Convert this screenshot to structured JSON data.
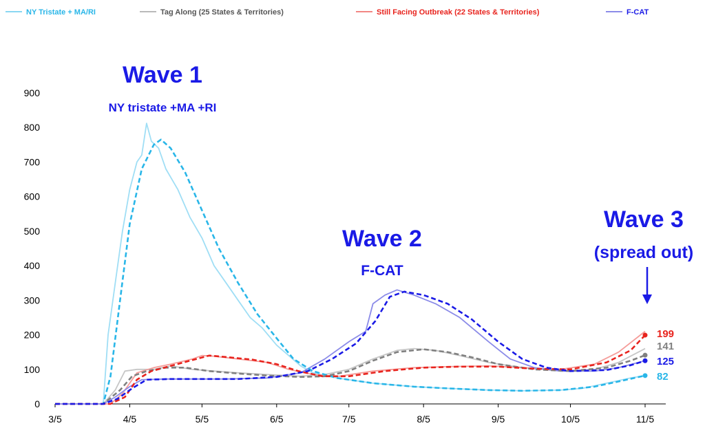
{
  "chart_data": {
    "type": "line",
    "xlim": [
      "2020-03-05",
      "2020-11-05"
    ],
    "ylim": [
      0,
      900
    ],
    "y_ticks": [
      0,
      100,
      200,
      300,
      400,
      500,
      600,
      700,
      800,
      900
    ],
    "x_ticks": [
      {
        "date": "2020-03-05",
        "label": "3/5"
      },
      {
        "date": "2020-04-05",
        "label": "4/5"
      },
      {
        "date": "2020-05-05",
        "label": "5/5"
      },
      {
        "date": "2020-06-05",
        "label": "6/5"
      },
      {
        "date": "2020-07-05",
        "label": "7/5"
      },
      {
        "date": "2020-08-05",
        "label": "8/5"
      },
      {
        "date": "2020-09-05",
        "label": "9/5"
      },
      {
        "date": "2020-10-05",
        "label": "10/5"
      },
      {
        "date": "2020-11-05",
        "label": "11/5"
      }
    ],
    "legend_position": "top",
    "grid": false,
    "series": [
      {
        "name": "NY Tristate + MA/RI",
        "color": "#29b6e8",
        "raw": [
          [
            "2020-03-05",
            0
          ],
          [
            "2020-03-25",
            0
          ],
          [
            "2020-03-27",
            200
          ],
          [
            "2020-03-30",
            350
          ],
          [
            "2020-04-02",
            500
          ],
          [
            "2020-04-05",
            620
          ],
          [
            "2020-04-08",
            700
          ],
          [
            "2020-04-10",
            720
          ],
          [
            "2020-04-12",
            812
          ],
          [
            "2020-04-14",
            760
          ],
          [
            "2020-04-17",
            740
          ],
          [
            "2020-04-20",
            680
          ],
          [
            "2020-04-25",
            620
          ],
          [
            "2020-04-30",
            540
          ],
          [
            "2020-05-05",
            480
          ],
          [
            "2020-05-10",
            400
          ],
          [
            "2020-05-15",
            350
          ],
          [
            "2020-05-20",
            300
          ],
          [
            "2020-05-25",
            250
          ],
          [
            "2020-05-30",
            220
          ],
          [
            "2020-06-05",
            170
          ],
          [
            "2020-06-10",
            140
          ],
          [
            "2020-06-15",
            110
          ],
          [
            "2020-06-20",
            90
          ],
          [
            "2020-06-30",
            75
          ],
          [
            "2020-07-15",
            60
          ],
          [
            "2020-08-01",
            50
          ],
          [
            "2020-08-15",
            45
          ],
          [
            "2020-09-01",
            40
          ],
          [
            "2020-09-15",
            38
          ],
          [
            "2020-10-01",
            40
          ],
          [
            "2020-10-10",
            45
          ],
          [
            "2020-10-20",
            60
          ],
          [
            "2020-10-30",
            75
          ],
          [
            "2020-11-05",
            82
          ]
        ],
        "avg": [
          [
            "2020-03-05",
            0
          ],
          [
            "2020-03-25",
            0
          ],
          [
            "2020-03-28",
            80
          ],
          [
            "2020-04-01",
            300
          ],
          [
            "2020-04-05",
            520
          ],
          [
            "2020-04-10",
            680
          ],
          [
            "2020-04-15",
            750
          ],
          [
            "2020-04-18",
            765
          ],
          [
            "2020-04-22",
            740
          ],
          [
            "2020-04-28",
            670
          ],
          [
            "2020-05-05",
            560
          ],
          [
            "2020-05-12",
            450
          ],
          [
            "2020-05-20",
            350
          ],
          [
            "2020-05-28",
            260
          ],
          [
            "2020-06-05",
            190
          ],
          [
            "2020-06-12",
            130
          ],
          [
            "2020-06-20",
            95
          ],
          [
            "2020-06-30",
            75
          ],
          [
            "2020-07-15",
            60
          ],
          [
            "2020-08-01",
            50
          ],
          [
            "2020-08-15",
            45
          ],
          [
            "2020-09-01",
            40
          ],
          [
            "2020-09-15",
            38
          ],
          [
            "2020-10-01",
            40
          ],
          [
            "2020-10-15",
            50
          ],
          [
            "2020-10-25",
            65
          ],
          [
            "2020-11-05",
            82
          ]
        ],
        "end_value": 82,
        "end_label": "82"
      },
      {
        "name": "Tag Along (25 States & Territories)",
        "color": "#808080",
        "raw": [
          [
            "2020-03-05",
            0
          ],
          [
            "2020-03-25",
            0
          ],
          [
            "2020-03-30",
            40
          ],
          [
            "2020-04-03",
            95
          ],
          [
            "2020-04-08",
            100
          ],
          [
            "2020-04-15",
            100
          ],
          [
            "2020-04-22",
            110
          ],
          [
            "2020-05-01",
            100
          ],
          [
            "2020-05-10",
            95
          ],
          [
            "2020-05-20",
            90
          ],
          [
            "2020-06-01",
            85
          ],
          [
            "2020-06-15",
            80
          ],
          [
            "2020-06-25",
            85
          ],
          [
            "2020-07-05",
            100
          ],
          [
            "2020-07-15",
            130
          ],
          [
            "2020-07-25",
            155
          ],
          [
            "2020-08-01",
            160
          ],
          [
            "2020-08-10",
            155
          ],
          [
            "2020-08-20",
            140
          ],
          [
            "2020-09-01",
            120
          ],
          [
            "2020-09-15",
            105
          ],
          [
            "2020-10-01",
            95
          ],
          [
            "2020-10-15",
            100
          ],
          [
            "2020-10-25",
            120
          ],
          [
            "2020-11-05",
            160
          ]
        ],
        "avg": [
          [
            "2020-03-05",
            0
          ],
          [
            "2020-03-25",
            0
          ],
          [
            "2020-04-01",
            40
          ],
          [
            "2020-04-06",
            80
          ],
          [
            "2020-04-12",
            95
          ],
          [
            "2020-04-20",
            105
          ],
          [
            "2020-04-28",
            105
          ],
          [
            "2020-05-08",
            95
          ],
          [
            "2020-05-20",
            88
          ],
          [
            "2020-06-01",
            82
          ],
          [
            "2020-06-15",
            78
          ],
          [
            "2020-06-25",
            80
          ],
          [
            "2020-07-05",
            95
          ],
          [
            "2020-07-15",
            125
          ],
          [
            "2020-07-25",
            150
          ],
          [
            "2020-08-05",
            158
          ],
          [
            "2020-08-15",
            150
          ],
          [
            "2020-08-25",
            135
          ],
          [
            "2020-09-05",
            115
          ],
          [
            "2020-09-20",
            100
          ],
          [
            "2020-10-05",
            95
          ],
          [
            "2020-10-20",
            105
          ],
          [
            "2020-10-30",
            125
          ],
          [
            "2020-11-05",
            141
          ]
        ],
        "end_value": 141,
        "end_label": "141"
      },
      {
        "name": "Still Facing Outbreak (22 States & Territories)",
        "color": "#e8231d",
        "raw": [
          [
            "2020-03-05",
            0
          ],
          [
            "2020-03-28",
            0
          ],
          [
            "2020-04-02",
            30
          ],
          [
            "2020-04-08",
            90
          ],
          [
            "2020-04-15",
            105
          ],
          [
            "2020-04-22",
            115
          ],
          [
            "2020-05-01",
            130
          ],
          [
            "2020-05-05",
            140
          ],
          [
            "2020-05-10",
            138
          ],
          [
            "2020-05-20",
            130
          ],
          [
            "2020-06-01",
            120
          ],
          [
            "2020-06-10",
            100
          ],
          [
            "2020-06-20",
            85
          ],
          [
            "2020-07-01",
            80
          ],
          [
            "2020-07-15",
            95
          ],
          [
            "2020-08-01",
            105
          ],
          [
            "2020-08-15",
            108
          ],
          [
            "2020-09-01",
            110
          ],
          [
            "2020-09-15",
            105
          ],
          [
            "2020-10-01",
            100
          ],
          [
            "2020-10-15",
            115
          ],
          [
            "2020-10-25",
            150
          ],
          [
            "2020-11-05",
            210
          ]
        ],
        "avg": [
          [
            "2020-03-05",
            0
          ],
          [
            "2020-03-28",
            0
          ],
          [
            "2020-04-03",
            20
          ],
          [
            "2020-04-08",
            70
          ],
          [
            "2020-04-14",
            95
          ],
          [
            "2020-04-22",
            110
          ],
          [
            "2020-04-30",
            125
          ],
          [
            "2020-05-08",
            140
          ],
          [
            "2020-05-16",
            135
          ],
          [
            "2020-05-26",
            128
          ],
          [
            "2020-06-05",
            115
          ],
          [
            "2020-06-14",
            95
          ],
          [
            "2020-06-24",
            80
          ],
          [
            "2020-07-05",
            80
          ],
          [
            "2020-07-20",
            95
          ],
          [
            "2020-08-05",
            105
          ],
          [
            "2020-08-20",
            108
          ],
          [
            "2020-09-05",
            108
          ],
          [
            "2020-09-20",
            102
          ],
          [
            "2020-10-05",
            100
          ],
          [
            "2020-10-20",
            120
          ],
          [
            "2020-10-30",
            155
          ],
          [
            "2020-11-05",
            199
          ]
        ],
        "end_value": 199,
        "end_label": "199"
      },
      {
        "name": "F-CAT",
        "color": "#1a1ae6",
        "raw_color": "#8b8be8",
        "raw": [
          [
            "2020-03-05",
            0
          ],
          [
            "2020-03-25",
            0
          ],
          [
            "2020-03-30",
            20
          ],
          [
            "2020-04-05",
            50
          ],
          [
            "2020-04-10",
            70
          ],
          [
            "2020-04-20",
            72
          ],
          [
            "2020-05-01",
            72
          ],
          [
            "2020-05-15",
            72
          ],
          [
            "2020-06-01",
            75
          ],
          [
            "2020-06-15",
            90
          ],
          [
            "2020-06-25",
            130
          ],
          [
            "2020-07-05",
            180
          ],
          [
            "2020-07-12",
            210
          ],
          [
            "2020-07-15",
            290
          ],
          [
            "2020-07-20",
            315
          ],
          [
            "2020-07-25",
            330
          ],
          [
            "2020-08-01",
            315
          ],
          [
            "2020-08-10",
            290
          ],
          [
            "2020-08-20",
            250
          ],
          [
            "2020-09-01",
            180
          ],
          [
            "2020-09-10",
            130
          ],
          [
            "2020-09-20",
            105
          ],
          [
            "2020-10-01",
            95
          ],
          [
            "2020-10-15",
            95
          ],
          [
            "2020-10-25",
            105
          ],
          [
            "2020-11-05",
            125
          ]
        ],
        "avg": [
          [
            "2020-03-05",
            0
          ],
          [
            "2020-03-25",
            0
          ],
          [
            "2020-03-31",
            15
          ],
          [
            "2020-04-06",
            45
          ],
          [
            "2020-04-12",
            70
          ],
          [
            "2020-04-22",
            72
          ],
          [
            "2020-05-05",
            72
          ],
          [
            "2020-05-20",
            72
          ],
          [
            "2020-06-05",
            78
          ],
          [
            "2020-06-18",
            95
          ],
          [
            "2020-06-28",
            130
          ],
          [
            "2020-07-08",
            175
          ],
          [
            "2020-07-16",
            240
          ],
          [
            "2020-07-22",
            310
          ],
          [
            "2020-07-28",
            325
          ],
          [
            "2020-08-05",
            315
          ],
          [
            "2020-08-15",
            290
          ],
          [
            "2020-08-25",
            245
          ],
          [
            "2020-09-05",
            180
          ],
          [
            "2020-09-15",
            130
          ],
          [
            "2020-09-25",
            105
          ],
          [
            "2020-10-05",
            95
          ],
          [
            "2020-10-20",
            98
          ],
          [
            "2020-10-30",
            112
          ],
          [
            "2020-11-05",
            125
          ]
        ],
        "end_value": 125,
        "end_label": "125"
      }
    ],
    "annotations": [
      {
        "name": "wave-1-title",
        "text": "Wave 1",
        "color": "#1a1ae6",
        "size": "large"
      },
      {
        "name": "wave-1-subtitle",
        "text": "NY tristate +MA +RI",
        "color": "#1a1ae6",
        "size": "small"
      },
      {
        "name": "wave-2-title",
        "text": "Wave 2",
        "color": "#1a1ae6",
        "size": "large"
      },
      {
        "name": "wave-2-subtitle",
        "text": "F-CAT",
        "color": "#1a1ae6",
        "size": "small"
      },
      {
        "name": "wave-3-title",
        "text": "Wave 3",
        "color": "#1a1ae6",
        "size": "large"
      },
      {
        "name": "wave-3-subtitle",
        "text": "(spread out)",
        "color": "#1a1ae6",
        "size": "medium"
      }
    ]
  }
}
